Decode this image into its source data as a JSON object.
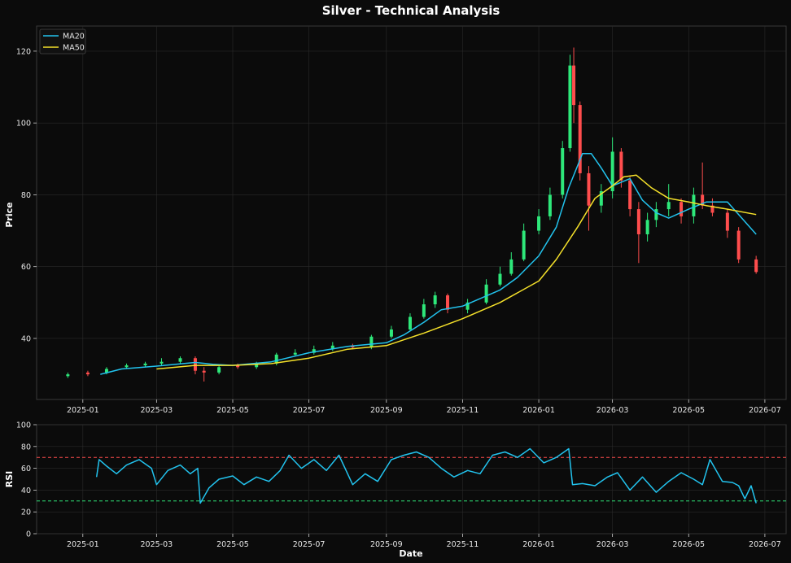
{
  "title": "Silver - Technical Analysis",
  "colors": {
    "background": "#0b0b0b",
    "up": "#2ee87a",
    "down": "#ff4d4d",
    "ma20": "#22c3ee",
    "ma50": "#f5e12a",
    "rsi": "#22c3ee",
    "overbought": "#ff4d4d",
    "oversold": "#2ee87a"
  },
  "chart_data": [
    {
      "type": "candlestick",
      "ylabel": "Price",
      "ylim": [
        23,
        127
      ],
      "xlim": [
        "2024-11-25",
        "2026-07-18"
      ],
      "yticks": [
        40,
        60,
        80,
        100,
        120
      ],
      "grid": true,
      "legend_position": "top-left",
      "series": [
        {
          "name": "MA20",
          "x": [
            "2025-01-15",
            "2025-02-01",
            "2025-03-01",
            "2025-04-01",
            "2025-04-15",
            "2025-05-01",
            "2025-06-01",
            "2025-07-01",
            "2025-08-01",
            "2025-09-01",
            "2025-09-15",
            "2025-10-01",
            "2025-10-15",
            "2025-11-01",
            "2025-12-01",
            "2025-12-15",
            "2026-01-01",
            "2026-01-15",
            "2026-01-25",
            "2026-02-05",
            "2026-02-12",
            "2026-02-20",
            "2026-03-01",
            "2026-03-15",
            "2026-03-25",
            "2026-04-05",
            "2026-04-15",
            "2026-05-01",
            "2026-05-15",
            "2026-06-01",
            "2026-06-10",
            "2026-06-24"
          ],
          "values": [
            30.0,
            31.5,
            32.3,
            33.3,
            32.8,
            32.5,
            33.5,
            36.0,
            37.8,
            38.8,
            41.0,
            44.5,
            48.0,
            49.0,
            53.5,
            57.0,
            63.0,
            71.0,
            82.0,
            91.5,
            91.5,
            87.5,
            82.5,
            84.5,
            78.5,
            75.0,
            73.5,
            76.0,
            78.0,
            78.0,
            74.5,
            69.0
          ]
        },
        {
          "name": "MA50",
          "x": [
            "2025-03-01",
            "2025-04-01",
            "2025-05-01",
            "2025-06-01",
            "2025-07-01",
            "2025-08-01",
            "2025-09-01",
            "2025-10-01",
            "2025-11-01",
            "2025-12-01",
            "2026-01-01",
            "2026-01-15",
            "2026-02-01",
            "2026-02-15",
            "2026-03-01",
            "2026-03-10",
            "2026-03-20",
            "2026-04-01",
            "2026-04-15",
            "2026-05-01",
            "2026-05-15",
            "2026-06-01",
            "2026-06-24"
          ],
          "values": [
            31.5,
            32.5,
            32.5,
            33.0,
            34.5,
            37.0,
            38.0,
            41.5,
            45.5,
            50.0,
            56.0,
            62.0,
            71.0,
            79.0,
            82.5,
            85.0,
            85.5,
            82.0,
            79.0,
            78.0,
            77.0,
            76.0,
            74.5
          ]
        }
      ],
      "candles": {
        "x": [
          "2024-12-20",
          "2025-01-05",
          "2025-01-20",
          "2025-02-05",
          "2025-02-20",
          "2025-03-05",
          "2025-03-20",
          "2025-04-01",
          "2025-04-08",
          "2025-04-20",
          "2025-05-05",
          "2025-05-20",
          "2025-06-05",
          "2025-06-20",
          "2025-07-05",
          "2025-07-20",
          "2025-08-05",
          "2025-08-20",
          "2025-09-05",
          "2025-09-20",
          "2025-10-01",
          "2025-10-10",
          "2025-10-20",
          "2025-11-05",
          "2025-11-20",
          "2025-12-01",
          "2025-12-10",
          "2025-12-20",
          "2026-01-01",
          "2026-01-10",
          "2026-01-20",
          "2026-01-26",
          "2026-01-29",
          "2026-02-03",
          "2026-02-10",
          "2026-02-20",
          "2026-03-01",
          "2026-03-08",
          "2026-03-15",
          "2026-03-22",
          "2026-03-29",
          "2026-04-05",
          "2026-04-15",
          "2026-04-25",
          "2026-05-05",
          "2026-05-12",
          "2026-05-20",
          "2026-06-01",
          "2026-06-10",
          "2026-06-24"
        ],
        "open": [
          29.5,
          30.5,
          30.5,
          32.0,
          32.5,
          33.0,
          33.5,
          34.5,
          31.0,
          30.5,
          32.5,
          32.0,
          33.0,
          35.5,
          36.0,
          37.0,
          38.0,
          37.5,
          40.5,
          42.5,
          46.0,
          49.5,
          52.0,
          48.0,
          50.0,
          55.0,
          58.0,
          62.0,
          70.0,
          74.0,
          80.0,
          93.0,
          116.0,
          105.0,
          86.0,
          77.0,
          81.0,
          92.0,
          84.0,
          76.0,
          69.0,
          73.0,
          76.0,
          78.0,
          74.0,
          80.0,
          77.0,
          75.0,
          70.0,
          62.0
        ],
        "close": [
          30.0,
          30.0,
          31.5,
          32.5,
          33.0,
          33.5,
          34.5,
          31.0,
          30.5,
          32.0,
          32.0,
          33.0,
          35.5,
          36.0,
          37.0,
          38.0,
          37.5,
          40.5,
          42.5,
          46.0,
          49.5,
          52.0,
          48.0,
          50.0,
          55.0,
          58.0,
          62.0,
          70.0,
          74.0,
          80.0,
          93.0,
          116.0,
          105.0,
          86.0,
          77.0,
          81.0,
          92.0,
          84.0,
          76.0,
          69.0,
          73.0,
          76.0,
          78.0,
          74.0,
          80.0,
          77.0,
          75.0,
          70.0,
          62.0,
          58.5
        ],
        "high": [
          30.5,
          31.0,
          32.0,
          33.0,
          33.5,
          34.5,
          35.0,
          35.0,
          32.0,
          32.5,
          33.0,
          33.5,
          36.0,
          37.0,
          38.0,
          39.0,
          38.5,
          41.0,
          43.5,
          47.0,
          51.0,
          53.0,
          52.5,
          51.0,
          56.5,
          60.0,
          64.0,
          72.0,
          76.0,
          82.0,
          95.0,
          119.0,
          121.0,
          106.0,
          88.0,
          83.0,
          96.0,
          93.0,
          85.0,
          78.0,
          75.0,
          78.0,
          83.0,
          79.0,
          82.0,
          89.0,
          79.0,
          76.0,
          71.0,
          63.0
        ],
        "low": [
          29.0,
          29.5,
          30.0,
          31.5,
          32.0,
          32.5,
          33.0,
          30.0,
          28.0,
          30.0,
          31.5,
          31.5,
          32.5,
          35.0,
          35.5,
          36.5,
          37.0,
          37.0,
          40.0,
          42.0,
          45.5,
          48.5,
          47.0,
          47.0,
          49.5,
          54.5,
          57.5,
          61.5,
          69.0,
          73.0,
          79.0,
          92.0,
          100.0,
          84.0,
          70.0,
          75.0,
          79.0,
          82.0,
          74.0,
          61.0,
          67.0,
          71.0,
          74.0,
          72.0,
          72.0,
          76.0,
          74.0,
          68.0,
          61.0,
          58.0
        ]
      }
    },
    {
      "type": "line",
      "xlabel": "Date",
      "ylabel": "RSI",
      "ylim": [
        0,
        100
      ],
      "yticks": [
        0,
        20,
        40,
        60,
        80,
        100
      ],
      "xticks": [
        "2025-01",
        "2025-03",
        "2025-05",
        "2025-07",
        "2025-09",
        "2025-11",
        "2026-01",
        "2026-03",
        "2026-05",
        "2026-07"
      ],
      "grid": true,
      "reference_lines": [
        70,
        30
      ],
      "series": [
        {
          "name": "RSI",
          "x": [
            "2025-01-12",
            "2025-01-14",
            "2025-01-20",
            "2025-01-28",
            "2025-02-05",
            "2025-02-15",
            "2025-02-25",
            "2025-03-01",
            "2025-03-10",
            "2025-03-20",
            "2025-03-28",
            "2025-04-03",
            "2025-04-05",
            "2025-04-12",
            "2025-04-20",
            "2025-05-01",
            "2025-05-10",
            "2025-05-20",
            "2025-05-30",
            "2025-06-08",
            "2025-06-15",
            "2025-06-25",
            "2025-07-05",
            "2025-07-15",
            "2025-07-25",
            "2025-08-05",
            "2025-08-15",
            "2025-08-25",
            "2025-09-05",
            "2025-09-15",
            "2025-09-25",
            "2025-10-05",
            "2025-10-15",
            "2025-10-25",
            "2025-11-05",
            "2025-11-15",
            "2025-11-25",
            "2025-12-05",
            "2025-12-15",
            "2025-12-25",
            "2026-01-05",
            "2026-01-15",
            "2026-01-25",
            "2026-01-28",
            "2026-02-05",
            "2026-02-15",
            "2026-02-25",
            "2026-03-05",
            "2026-03-15",
            "2026-03-25",
            "2026-04-05",
            "2026-04-15",
            "2026-04-25",
            "2026-05-05",
            "2026-05-12",
            "2026-05-18",
            "2026-05-28",
            "2026-06-05",
            "2026-06-10",
            "2026-06-15",
            "2026-06-20",
            "2026-06-24"
          ],
          "values": [
            52,
            68,
            62,
            55,
            63,
            68,
            60,
            45,
            58,
            63,
            55,
            60,
            28,
            42,
            50,
            53,
            45,
            52,
            48,
            58,
            72,
            60,
            68,
            58,
            72,
            45,
            55,
            48,
            68,
            72,
            75,
            70,
            60,
            52,
            58,
            55,
            72,
            75,
            70,
            78,
            65,
            70,
            78,
            45,
            46,
            44,
            52,
            56,
            40,
            52,
            38,
            48,
            56,
            50,
            45,
            68,
            48,
            47,
            44,
            32,
            44,
            28
          ]
        }
      ]
    }
  ]
}
